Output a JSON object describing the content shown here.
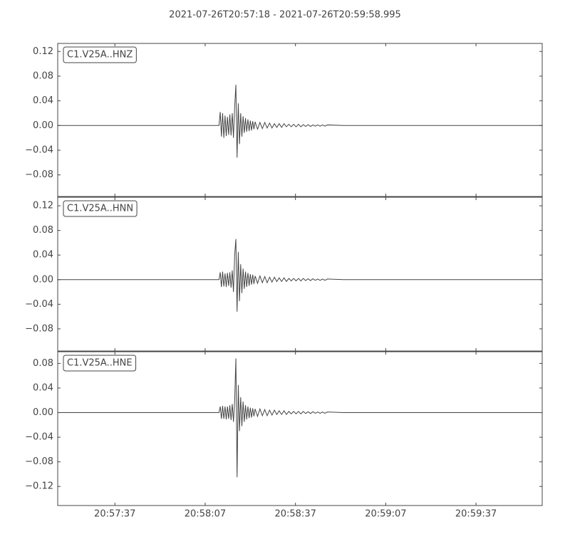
{
  "title": "2021-07-26T20:57:18  -  2021-07-26T20:59:58.995",
  "chart_data": [
    {
      "type": "line",
      "title": "C1.V25A..HNZ",
      "color": "#444444",
      "x": [
        0,
        53.6,
        54.0,
        54.4,
        54.8,
        55.2,
        55.6,
        56.0,
        56.4,
        56.8,
        57.2,
        57.6,
        58.0,
        58.4,
        58.8,
        59.2,
        59.6,
        60.0,
        60.4,
        60.8,
        61.2,
        61.6,
        62.0,
        62.4,
        62.8,
        63.2,
        63.6,
        64.0,
        64.4,
        64.8,
        65.2,
        65.6,
        66.4,
        67.2,
        68.0,
        68.8,
        69.6,
        70.4,
        71.2,
        72.0,
        72.8,
        73.6,
        74.4,
        75.2,
        76.0,
        76.8,
        77.6,
        78.4,
        79.2,
        80.0,
        80.8,
        81.6,
        82.4,
        83.2,
        84.0,
        84.8,
        85.6,
        86.4,
        87.2,
        88.0,
        88.8,
        89.6,
        95,
        160.995
      ],
      "values": [
        0,
        0,
        0.022,
        -0.018,
        0.02,
        -0.02,
        0.016,
        -0.017,
        0.014,
        -0.015,
        0.018,
        -0.016,
        0.02,
        -0.02,
        0.03,
        0.066,
        -0.052,
        0.036,
        -0.03,
        0.02,
        -0.018,
        0.015,
        -0.012,
        0.012,
        -0.01,
        0.01,
        -0.009,
        0.008,
        -0.008,
        0.007,
        -0.006,
        0.006,
        -0.006,
        0.005,
        -0.005,
        0.005,
        -0.004,
        0.004,
        -0.004,
        0.003,
        -0.003,
        0.003,
        -0.003,
        0.003,
        -0.002,
        0.002,
        -0.002,
        0.002,
        -0.002,
        0.002,
        -0.002,
        0.0015,
        -0.0015,
        0.0015,
        -0.0015,
        0.001,
        -0.001,
        0.001,
        -0.001,
        0.001,
        -0.001,
        0.001,
        0,
        0
      ],
      "xlim": [
        0,
        160.995
      ],
      "xticks": [
        19,
        49,
        79,
        109,
        139
      ],
      "ylim": [
        -0.115,
        0.133
      ],
      "yticks": [
        {
          "value": -0.08,
          "label": "−0.08"
        },
        {
          "value": -0.04,
          "label": "−0.04"
        },
        {
          "value": 0,
          "label": "0.00"
        },
        0.04,
        0.08,
        0.12
      ]
    },
    {
      "type": "line",
      "title": "C1.V25A..HNN",
      "color": "#444444",
      "x": [
        0,
        53.6,
        54.0,
        54.4,
        54.8,
        55.2,
        55.6,
        56.0,
        56.4,
        56.8,
        57.2,
        57.6,
        58.0,
        58.4,
        58.8,
        59.2,
        59.6,
        60.0,
        60.4,
        60.8,
        61.2,
        61.6,
        62.0,
        62.4,
        62.8,
        63.2,
        63.6,
        64.0,
        64.4,
        64.8,
        65.2,
        65.6,
        66.4,
        67.2,
        68.0,
        68.8,
        69.6,
        70.4,
        71.2,
        72.0,
        72.8,
        73.6,
        74.4,
        75.2,
        76.0,
        76.8,
        77.6,
        78.4,
        79.2,
        80.0,
        80.8,
        81.6,
        82.4,
        83.2,
        84.0,
        84.8,
        85.6,
        86.4,
        87.2,
        88.0,
        88.8,
        89.6,
        95,
        160.995
      ],
      "values": [
        0,
        0,
        0.012,
        -0.012,
        0.013,
        -0.011,
        0.01,
        -0.012,
        0.011,
        -0.01,
        0.012,
        -0.013,
        0.015,
        -0.02,
        0.04,
        0.066,
        -0.052,
        0.045,
        -0.035,
        0.025,
        -0.022,
        0.018,
        -0.015,
        0.013,
        -0.012,
        0.011,
        -0.01,
        0.009,
        -0.008,
        0.008,
        -0.007,
        0.006,
        -0.006,
        0.006,
        -0.005,
        0.005,
        -0.005,
        0.004,
        -0.004,
        0.004,
        -0.003,
        0.003,
        -0.003,
        0.003,
        -0.003,
        0.002,
        -0.002,
        0.002,
        -0.002,
        0.002,
        -0.002,
        0.002,
        -0.0015,
        0.0015,
        -0.0015,
        0.0015,
        -0.001,
        0.001,
        -0.001,
        0.001,
        -0.001,
        0.001,
        0,
        0
      ],
      "xlim": [
        0,
        160.995
      ],
      "xticks": [
        19,
        49,
        79,
        109,
        139
      ],
      "ylim": [
        -0.116,
        0.134
      ],
      "yticks": [
        {
          "value": -0.08,
          "label": "−0.08"
        },
        {
          "value": -0.04,
          "label": "−0.04"
        },
        {
          "value": 0,
          "label": "0.00"
        },
        0.04,
        0.08,
        0.12
      ]
    },
    {
      "type": "line",
      "title": "C1.V25A..HNE",
      "color": "#444444",
      "x": [
        0,
        53.6,
        54.0,
        54.4,
        54.8,
        55.2,
        55.6,
        56.0,
        56.4,
        56.8,
        57.2,
        57.6,
        58.0,
        58.4,
        58.8,
        59.2,
        59.6,
        60.0,
        60.4,
        60.8,
        61.2,
        61.6,
        62.0,
        62.4,
        62.8,
        63.2,
        63.6,
        64.0,
        64.4,
        64.8,
        65.2,
        65.6,
        66.4,
        67.2,
        68.0,
        68.8,
        69.6,
        70.4,
        71.2,
        72.0,
        72.8,
        73.6,
        74.4,
        75.2,
        76.0,
        76.8,
        77.6,
        78.4,
        79.2,
        80.0,
        80.8,
        81.6,
        82.4,
        83.2,
        84.0,
        84.8,
        85.6,
        86.4,
        87.2,
        88.0,
        88.8,
        89.6,
        95,
        160.995
      ],
      "values": [
        0,
        0,
        0.01,
        -0.01,
        0.011,
        -0.01,
        0.01,
        -0.011,
        0.01,
        -0.01,
        0.012,
        -0.012,
        0.014,
        -0.015,
        0.02,
        0.088,
        -0.105,
        0.045,
        -0.03,
        0.025,
        -0.022,
        0.018,
        -0.015,
        0.012,
        -0.011,
        0.01,
        -0.009,
        0.008,
        -0.008,
        0.007,
        -0.006,
        0.006,
        -0.006,
        0.006,
        -0.005,
        0.005,
        -0.005,
        0.004,
        -0.004,
        0.004,
        -0.003,
        0.003,
        -0.003,
        0.003,
        -0.003,
        0.002,
        -0.002,
        0.002,
        -0.002,
        0.002,
        -0.002,
        0.002,
        -0.0015,
        0.0015,
        -0.0015,
        0.0015,
        -0.001,
        0.001,
        -0.001,
        0.001,
        -0.001,
        0.001,
        0,
        0
      ],
      "xlim": [
        0,
        160.995
      ],
      "xticks": [
        {
          "value": 19,
          "label": "20:57:37"
        },
        {
          "value": 49,
          "label": "20:58:07"
        },
        {
          "value": 79,
          "label": "20:58:37"
        },
        {
          "value": 109,
          "label": "20:59:07"
        },
        {
          "value": 139,
          "label": "20:59:37"
        }
      ],
      "ylim": [
        -0.151,
        0.099
      ],
      "yticks": [
        {
          "value": -0.12,
          "label": "−0.12"
        },
        {
          "value": -0.08,
          "label": "−0.08"
        },
        {
          "value": -0.04,
          "label": "−0.04"
        },
        {
          "value": 0,
          "label": "0.00"
        },
        0.04,
        0.08
      ]
    }
  ]
}
